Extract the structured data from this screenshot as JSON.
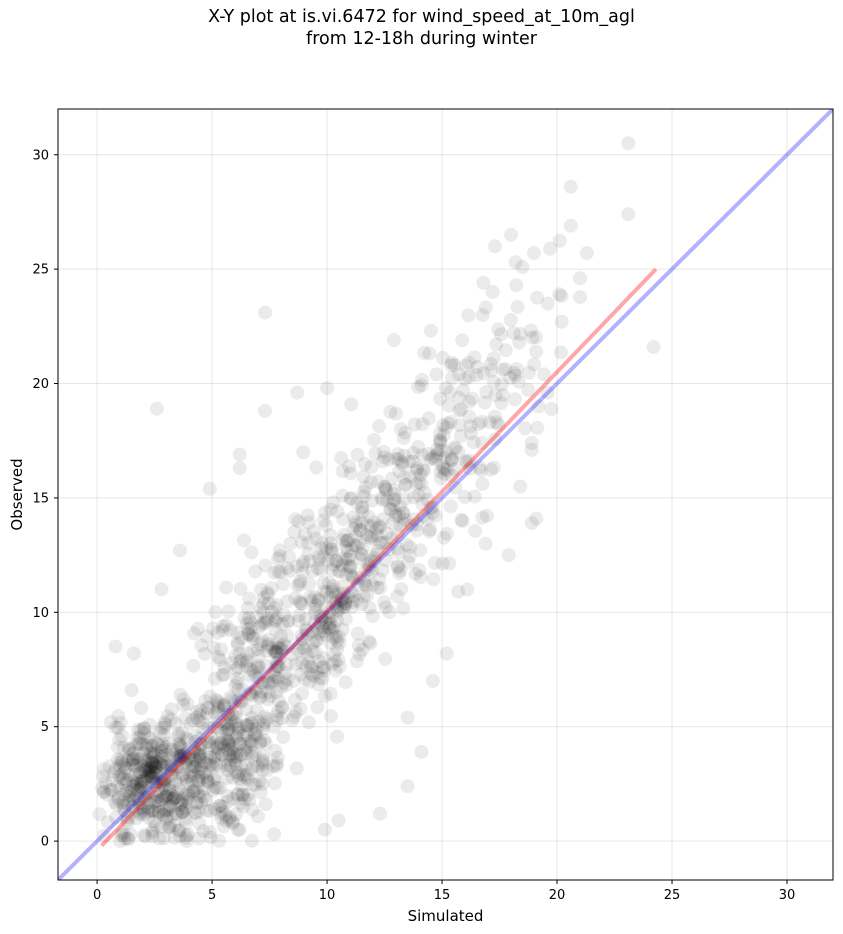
{
  "chart_data": {
    "type": "scatter",
    "title": {
      "line1": "X-Y plot at is.vi.6472 for wind_speed_at_10m_agl",
      "line2": "from 12-18h during winter"
    },
    "xlabel": "Simulated",
    "ylabel": "Observed",
    "xlim": [
      -1.7,
      32
    ],
    "ylim": [
      -1.7,
      32
    ],
    "xticks": [
      0,
      5,
      10,
      15,
      20,
      25,
      30
    ],
    "yticks": [
      0,
      5,
      10,
      15,
      20,
      25,
      30
    ],
    "grid": true,
    "point_style": {
      "color": "#000000",
      "opacity": 0.08
    },
    "reference_line": {
      "label": "1:1",
      "color": "#0000ff",
      "opacity": 0.3,
      "x": [
        -1.7,
        32
      ],
      "y": [
        -1.7,
        32
      ]
    },
    "fit_line": {
      "label": "fit",
      "color": "#ff0000",
      "opacity": 0.35,
      "x": [
        0.2,
        24.3
      ],
      "y": [
        -0.2,
        25.0
      ]
    },
    "outliers": [
      {
        "x": 23.1,
        "y": 30.5
      },
      {
        "x": 20.6,
        "y": 28.6
      },
      {
        "x": 23.1,
        "y": 27.4
      },
      {
        "x": 20.6,
        "y": 26.9
      },
      {
        "x": 18.0,
        "y": 26.5
      },
      {
        "x": 17.3,
        "y": 26.0
      },
      {
        "x": 19.7,
        "y": 25.9
      },
      {
        "x": 21.3,
        "y": 25.7
      },
      {
        "x": 19.0,
        "y": 25.7
      },
      {
        "x": 18.2,
        "y": 25.3
      },
      {
        "x": 21.0,
        "y": 24.6
      },
      {
        "x": 18.5,
        "y": 25.1
      },
      {
        "x": 17.2,
        "y": 24.0
      },
      {
        "x": 20.1,
        "y": 23.9
      },
      {
        "x": 19.6,
        "y": 23.5
      },
      {
        "x": 16.8,
        "y": 24.4
      },
      {
        "x": 7.3,
        "y": 23.1
      },
      {
        "x": 20.2,
        "y": 22.7
      },
      {
        "x": 24.2,
        "y": 21.6
      },
      {
        "x": 12.9,
        "y": 21.9
      },
      {
        "x": 2.6,
        "y": 18.9
      },
      {
        "x": 7.3,
        "y": 18.8
      },
      {
        "x": 8.7,
        "y": 19.6
      },
      {
        "x": 10.0,
        "y": 19.8
      },
      {
        "x": 19.6,
        "y": 19.6
      },
      {
        "x": 19.2,
        "y": 19.0
      },
      {
        "x": 6.2,
        "y": 16.9
      },
      {
        "x": 6.2,
        "y": 16.3
      },
      {
        "x": 18.9,
        "y": 17.1
      },
      {
        "x": 18.9,
        "y": 17.4
      },
      {
        "x": 4.9,
        "y": 15.4
      },
      {
        "x": 18.4,
        "y": 15.5
      },
      {
        "x": 18.9,
        "y": 13.9
      },
      {
        "x": 19.1,
        "y": 14.1
      },
      {
        "x": 17.9,
        "y": 12.5
      },
      {
        "x": 16.9,
        "y": 13.0
      },
      {
        "x": 3.6,
        "y": 12.7
      },
      {
        "x": 15.7,
        "y": 10.9
      },
      {
        "x": 16.1,
        "y": 11.0
      },
      {
        "x": 2.8,
        "y": 11.0
      },
      {
        "x": 0.8,
        "y": 8.5
      },
      {
        "x": 1.6,
        "y": 8.2
      },
      {
        "x": 1.5,
        "y": 6.6
      },
      {
        "x": 0.6,
        "y": 5.2
      },
      {
        "x": 12.3,
        "y": 1.2
      },
      {
        "x": 13.5,
        "y": 2.4
      },
      {
        "x": 14.1,
        "y": 3.9
      },
      {
        "x": 13.5,
        "y": 5.4
      },
      {
        "x": 15.2,
        "y": 8.2
      },
      {
        "x": 14.6,
        "y": 7.0
      },
      {
        "x": 10.5,
        "y": 0.9
      },
      {
        "x": 9.9,
        "y": 0.5
      },
      {
        "x": 7.7,
        "y": 0.3
      },
      {
        "x": 6.2,
        "y": 0.5
      },
      {
        "x": 3.9,
        "y": 0.0
      },
      {
        "x": 1.0,
        "y": 0.0
      },
      {
        "x": 2.1,
        "y": 0.2
      },
      {
        "x": 4.9,
        "y": 0.4
      },
      {
        "x": 16.0,
        "y": 20.2
      },
      {
        "x": 15.4,
        "y": 20.8
      }
    ],
    "clusters": [
      {
        "cx": 2.0,
        "cy": 2.8,
        "sx": 0.9,
        "sy": 1.1,
        "n": 210,
        "rho": 0.2
      },
      {
        "cx": 3.6,
        "cy": 2.6,
        "sx": 1.2,
        "sy": 1.4,
        "n": 200,
        "rho": 0.3
      },
      {
        "cx": 6.0,
        "cy": 3.4,
        "sx": 1.0,
        "sy": 1.4,
        "n": 150,
        "rho": 0.3
      },
      {
        "cx": 6.3,
        "cy": 7.0,
        "sx": 1.8,
        "sy": 2.2,
        "n": 170,
        "rho": 0.5
      },
      {
        "cx": 8.5,
        "cy": 8.5,
        "sx": 1.8,
        "sy": 2.5,
        "n": 160,
        "rho": 0.5
      },
      {
        "cx": 10.8,
        "cy": 11.5,
        "sx": 2.0,
        "sy": 2.5,
        "n": 180,
        "rho": 0.5
      },
      {
        "cx": 13.0,
        "cy": 15.0,
        "sx": 2.0,
        "sy": 2.4,
        "n": 160,
        "rho": 0.5
      },
      {
        "cx": 15.5,
        "cy": 18.0,
        "sx": 1.7,
        "sy": 2.2,
        "n": 80,
        "rho": 0.4
      },
      {
        "cx": 17.5,
        "cy": 21.0,
        "sx": 1.6,
        "sy": 2.0,
        "n": 45,
        "rho": 0.4
      }
    ]
  }
}
